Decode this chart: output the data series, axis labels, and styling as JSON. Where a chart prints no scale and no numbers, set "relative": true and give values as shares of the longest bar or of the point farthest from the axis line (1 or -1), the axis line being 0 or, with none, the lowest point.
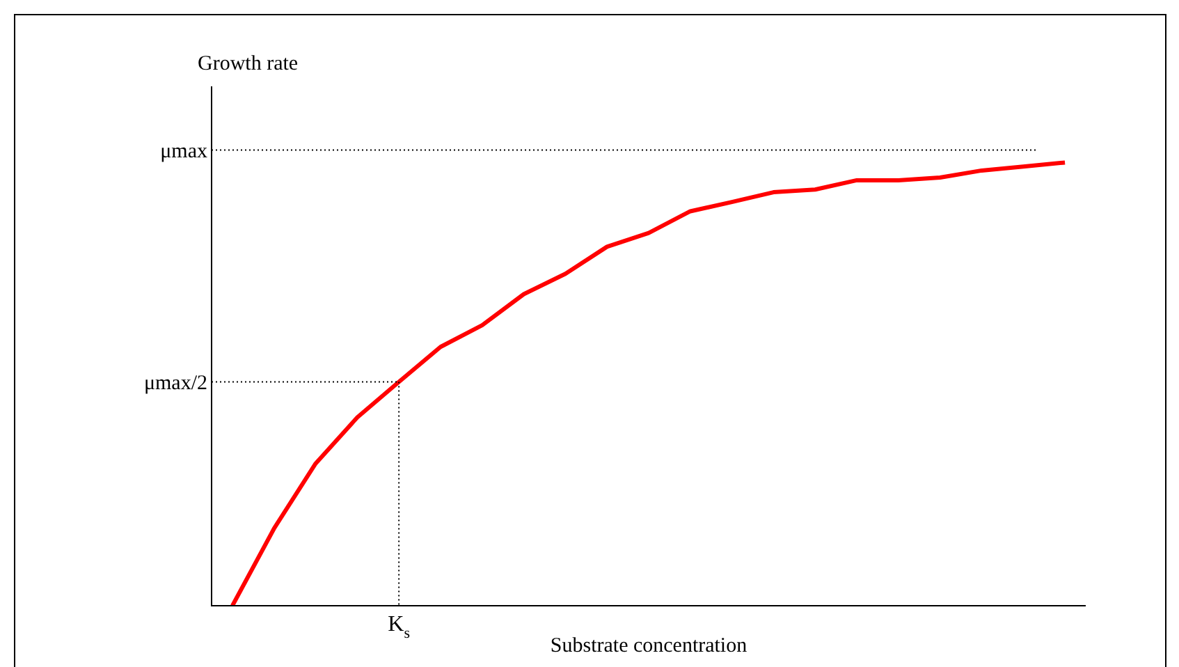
{
  "chart_data": {
    "type": "line",
    "relative": true,
    "xlabel": "Substrate concentration",
    "ylabel": "Growth rate",
    "categories": [
      null,
      null,
      null,
      null,
      null,
      null,
      null,
      null,
      null,
      null,
      null,
      null,
      null,
      null,
      null,
      null,
      null,
      null,
      null,
      null,
      null
    ],
    "series": [
      {
        "color": "#ff0000",
        "values": [
          0,
          0.174,
          0.321,
          0.425,
          0.505,
          0.584,
          0.633,
          0.703,
          0.749,
          0.81,
          0.841,
          0.89,
          0.911,
          0.933,
          0.939,
          0.96,
          0.96,
          0.966,
          0.982,
          0.991,
          1
        ]
      }
    ],
    "ref_lines": [
      {
        "axis": "y",
        "value": 1.028,
        "label": "μmax",
        "line_style": "dotted"
      },
      {
        "axis": "y",
        "value": 0.505,
        "label": "μmax/2",
        "line_style": "dotted"
      }
    ],
    "annotations": [
      "K$_{s}$"
    ],
    "legend": false,
    "marker": "none",
    "line_style": "solid"
  }
}
